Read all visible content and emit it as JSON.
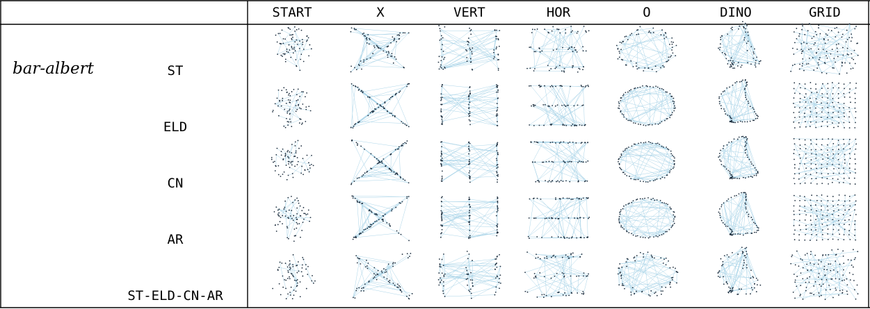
{
  "table": {
    "group_label": "bar-albert",
    "columns": [
      "START",
      "X",
      "VERT",
      "HOR",
      "O",
      "DINO",
      "GRID"
    ],
    "rows": [
      "ST",
      "ELD",
      "CN",
      "AR",
      "ST-ELD-CN-AR"
    ]
  },
  "colors": {
    "rule": "#000000",
    "edge": "#a9d4e8",
    "node": "#1f2f3f"
  }
}
